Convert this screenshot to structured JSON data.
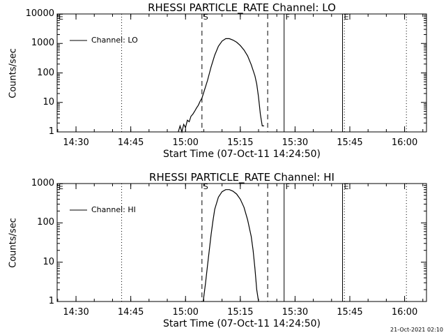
{
  "chart_data": [
    {
      "type": "line",
      "title": "RHESSI PARTICLE_RATE Channel: LO",
      "xlabel": "Start Time (07-Oct-11 14:24:50)",
      "ylabel": "Counts/sec",
      "yscale": "log",
      "ylim": [
        1,
        10000
      ],
      "xlim": [
        "14:24:50",
        "16:06:00"
      ],
      "x_ticks": [
        "14:30",
        "14:45",
        "15:00",
        "15:15",
        "15:30",
        "15:45",
        "16:00"
      ],
      "y_ticks": [
        "1",
        "10",
        "100",
        "1000",
        "10000"
      ],
      "legend": {
        "position": "top-left",
        "entries": [
          "Channel: LO"
        ]
      },
      "markers": [
        {
          "label": "S",
          "time": "15:04:30",
          "style": "dashed"
        },
        {
          "label": "",
          "time": "15:22:30",
          "style": "dashed"
        },
        {
          "label": "F",
          "time": "15:27:00",
          "style": "solid"
        },
        {
          "label": "E",
          "time": "15:43:00",
          "style": "solid"
        },
        {
          "label": "",
          "time": "14:42:30",
          "style": "dotted"
        },
        {
          "label": "",
          "time": "15:43:30",
          "style": "dotted"
        },
        {
          "label": "",
          "time": "16:00:30",
          "style": "dotted"
        },
        {
          "label": "E",
          "time": "14:24:50",
          "style": "none"
        }
      ],
      "series": [
        {
          "name": "Channel: LO",
          "points": [
            [
              "14:58:00",
              1
            ],
            [
              "14:58:30",
              1.6
            ],
            [
              "14:59:00",
              1
            ],
            [
              "14:59:30",
              1.8
            ],
            [
              "15:00:00",
              1.4
            ],
            [
              "15:00:30",
              2.5
            ],
            [
              "15:01:00",
              2.2
            ],
            [
              "15:01:30",
              3.4
            ],
            [
              "15:02:00",
              4
            ],
            [
              "15:02:30",
              5
            ],
            [
              "15:03:00",
              6.5
            ],
            [
              "15:03:30",
              8
            ],
            [
              "15:04:00",
              11
            ],
            [
              "15:04:30",
              14
            ],
            [
              "15:05:00",
              22
            ],
            [
              "15:06:00",
              55
            ],
            [
              "15:07:00",
              160
            ],
            [
              "15:08:00",
              400
            ],
            [
              "15:09:00",
              800
            ],
            [
              "15:10:00",
              1200
            ],
            [
              "15:11:00",
              1450
            ],
            [
              "15:12:00",
              1450
            ],
            [
              "15:13:00",
              1300
            ],
            [
              "15:14:00",
              1100
            ],
            [
              "15:15:00",
              850
            ],
            [
              "15:16:00",
              600
            ],
            [
              "15:17:00",
              380
            ],
            [
              "15:18:00",
              190
            ],
            [
              "15:19:00",
              80
            ],
            [
              "15:19:30",
              42
            ],
            [
              "15:20:00",
              15
            ],
            [
              "15:20:30",
              4
            ],
            [
              "15:21:00",
              1.6
            ],
            [
              "15:21:30",
              1.6
            ]
          ]
        }
      ]
    },
    {
      "type": "line",
      "title": "RHESSI PARTICLE_RATE Channel: HI",
      "xlabel": "Start Time (07-Oct-11 14:24:50)",
      "ylabel": "Counts/sec",
      "yscale": "log",
      "ylim": [
        1,
        1000
      ],
      "xlim": [
        "14:24:50",
        "16:06:00"
      ],
      "x_ticks": [
        "14:30",
        "14:45",
        "15:00",
        "15:15",
        "15:30",
        "15:45",
        "16:00"
      ],
      "y_ticks": [
        "1",
        "10",
        "100",
        "1000"
      ],
      "legend": {
        "position": "top-left",
        "entries": [
          "Channel: HI"
        ]
      },
      "markers": [
        {
          "label": "S",
          "time": "15:04:30",
          "style": "dashed"
        },
        {
          "label": "",
          "time": "15:22:30",
          "style": "dashed"
        },
        {
          "label": "F",
          "time": "15:27:00",
          "style": "solid"
        },
        {
          "label": "E",
          "time": "15:43:00",
          "style": "solid"
        },
        {
          "label": "",
          "time": "14:42:30",
          "style": "dotted"
        },
        {
          "label": "",
          "time": "15:43:30",
          "style": "dotted"
        },
        {
          "label": "",
          "time": "16:00:30",
          "style": "dotted"
        },
        {
          "label": "E",
          "time": "14:24:50",
          "style": "none"
        }
      ],
      "series": [
        {
          "name": "Channel: HI",
          "points": [
            [
              "15:04:50",
              1
            ],
            [
              "15:05:30",
              3
            ],
            [
              "15:06:00",
              8
            ],
            [
              "15:06:30",
              20
            ],
            [
              "15:07:00",
              50
            ],
            [
              "15:07:30",
              110
            ],
            [
              "15:08:00",
              220
            ],
            [
              "15:09:00",
              450
            ],
            [
              "15:10:00",
              620
            ],
            [
              "15:11:00",
              700
            ],
            [
              "15:12:00",
              700
            ],
            [
              "15:13:00",
              640
            ],
            [
              "15:14:00",
              540
            ],
            [
              "15:15:00",
              400
            ],
            [
              "15:16:00",
              250
            ],
            [
              "15:17:00",
              120
            ],
            [
              "15:18:00",
              45
            ],
            [
              "15:18:30",
              20
            ],
            [
              "15:19:00",
              7
            ],
            [
              "15:19:30",
              2
            ],
            [
              "15:20:00",
              1
            ]
          ]
        }
      ]
    }
  ],
  "footer": {
    "timestamp": "21-Oct-2021 02:10"
  }
}
